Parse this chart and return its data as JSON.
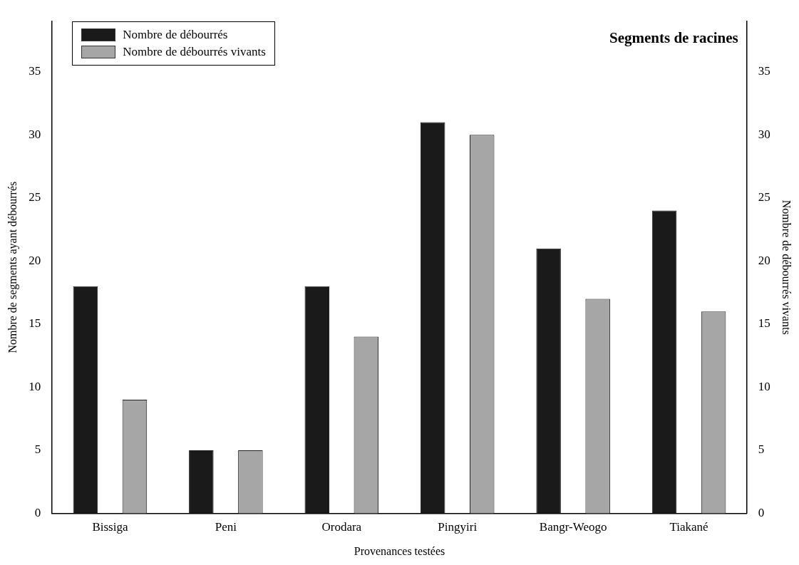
{
  "chart_data": {
    "type": "bar",
    "title": "Segments de racines",
    "xlabel": "Provenances testées",
    "ylabel": "Nombre de segments ayant débourrés",
    "y2label": "Nombre de débourrés vivants",
    "categories": [
      "Bissiga",
      "Peni",
      "Orodara",
      "Pingyiri",
      "Bangr-Weogo",
      "Tiakané"
    ],
    "series": [
      {
        "name": "Nombre de débourrés",
        "color": "#1a1a1a",
        "values": [
          18,
          5,
          18,
          31,
          21,
          24
        ]
      },
      {
        "name": "Nombre de débourrés vivants",
        "color": "#a6a6a6",
        "values": [
          9,
          5,
          14,
          30,
          17,
          16
        ]
      }
    ],
    "ylim": [
      0,
      39
    ],
    "yticks": [
      0,
      5,
      10,
      15,
      20,
      25,
      30,
      35
    ],
    "y2lim": [
      0,
      39
    ],
    "y2ticks": [
      0,
      5,
      10,
      15,
      20,
      25,
      30,
      35
    ],
    "grid": false,
    "legend": "top left"
  }
}
